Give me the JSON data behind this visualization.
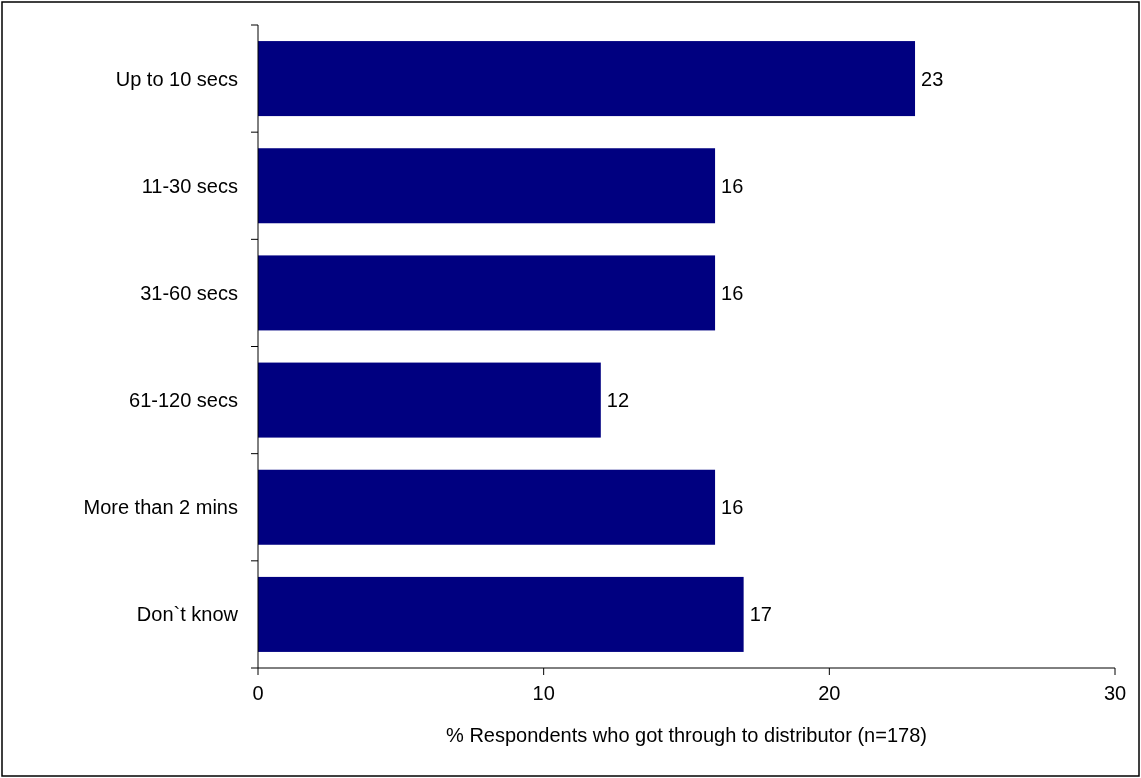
{
  "chart_data": {
    "type": "bar",
    "orientation": "horizontal",
    "xlabel": "% Respondents who got through to distributor (n=178)",
    "categories": [
      "Up to 10 secs",
      "11-30 secs",
      "31-60 secs",
      "61-120 secs",
      "More than 2 mins",
      "Don`t know"
    ],
    "values": [
      23,
      16,
      16,
      12,
      16,
      17
    ],
    "color": "#000080",
    "data_labels": true,
    "xlim": [
      0,
      30
    ],
    "xticks": [
      0,
      10,
      20,
      30
    ]
  }
}
